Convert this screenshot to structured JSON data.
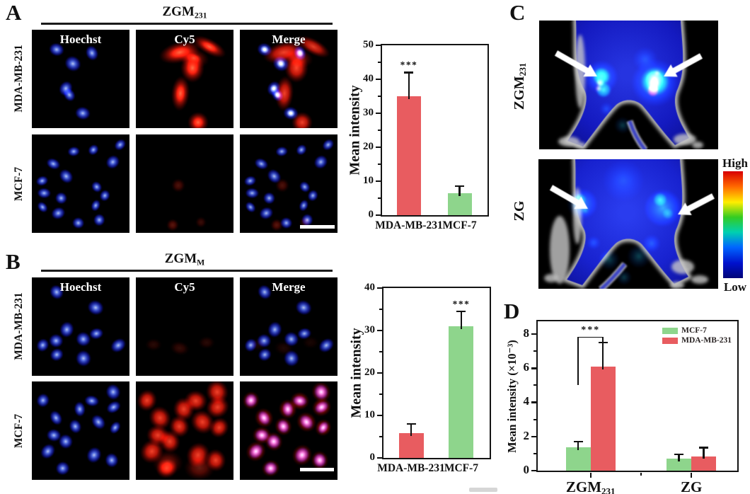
{
  "figure": {
    "panel_a": {
      "label": "A",
      "title": {
        "base": "ZGM",
        "sub": "231"
      },
      "column_labels": [
        "Hoechst",
        "Cy5",
        "Merge"
      ],
      "row_labels": [
        "MDA-MB-231",
        "MCF-7"
      ]
    },
    "panel_b": {
      "label": "B",
      "title": {
        "base": "ZGM",
        "sub": "M"
      },
      "column_labels": [
        "Hoechst",
        "Cy5",
        "Merge"
      ],
      "row_labels": [
        "MDA-MB-231",
        "MCF-7"
      ]
    },
    "panel_c": {
      "label": "C",
      "image_labels": [
        {
          "base": "ZGM",
          "sub": "231"
        },
        {
          "base": "ZG",
          "sub": ""
        }
      ],
      "colorbar": {
        "high": "High",
        "low": "Low",
        "colors": [
          "#d80000",
          "#ff6600",
          "#ffee00",
          "#33cc22",
          "#00d0b0",
          "#0066ff",
          "#0011cc",
          "#000578"
        ]
      }
    },
    "panel_d": {
      "label": "D"
    }
  },
  "chart_data": [
    {
      "id": "chartA",
      "type": "bar",
      "categories": [
        "MDA-MB-231",
        "MCF-7"
      ],
      "values": [
        35,
        6.5
      ],
      "errors": [
        7,
        2
      ],
      "bar_colors": [
        "#e85c60",
        "#8ed58c"
      ],
      "ylabel": "Mean intensity",
      "ylim": [
        0,
        50
      ],
      "yticks": [
        0,
        10,
        20,
        30,
        40,
        50
      ],
      "grid": false,
      "annotations": [
        {
          "bar": 0,
          "text": "***"
        }
      ]
    },
    {
      "id": "chartB",
      "type": "bar",
      "categories": [
        "MDA-MB-231",
        "MCF-7"
      ],
      "values": [
        5.8,
        31
      ],
      "errors": [
        2.2,
        3.5
      ],
      "bar_colors": [
        "#e85c60",
        "#8ed58c"
      ],
      "ylabel": "Mean intensity",
      "ylim": [
        0,
        40
      ],
      "yticks": [
        0,
        10,
        20,
        30,
        40
      ],
      "grid": false,
      "annotations": [
        {
          "bar": 1,
          "text": "***"
        }
      ]
    },
    {
      "id": "chartD",
      "type": "grouped_bar",
      "categories": [
        {
          "text": "ZGM",
          "sub": "231"
        },
        {
          "text": "ZG",
          "sub": ""
        }
      ],
      "series": [
        {
          "name": "MCF-7",
          "color": "#8ed58c",
          "values": [
            1.35,
            0.7
          ],
          "errors": [
            0.35,
            0.25
          ]
        },
        {
          "name": "MDA-MB-231",
          "color": "#e85c60",
          "values": [
            6.1,
            0.85
          ],
          "errors": [
            1.4,
            0.5
          ]
        }
      ],
      "ylabel": "Mean intensity (×10⁻³)",
      "ylim": [
        0,
        8
      ],
      "yticks": [
        0,
        2,
        4,
        6,
        8
      ],
      "grid": false,
      "legend": {
        "position": "top-right"
      },
      "significance": {
        "label": "***",
        "category_index": 0
      }
    }
  ]
}
